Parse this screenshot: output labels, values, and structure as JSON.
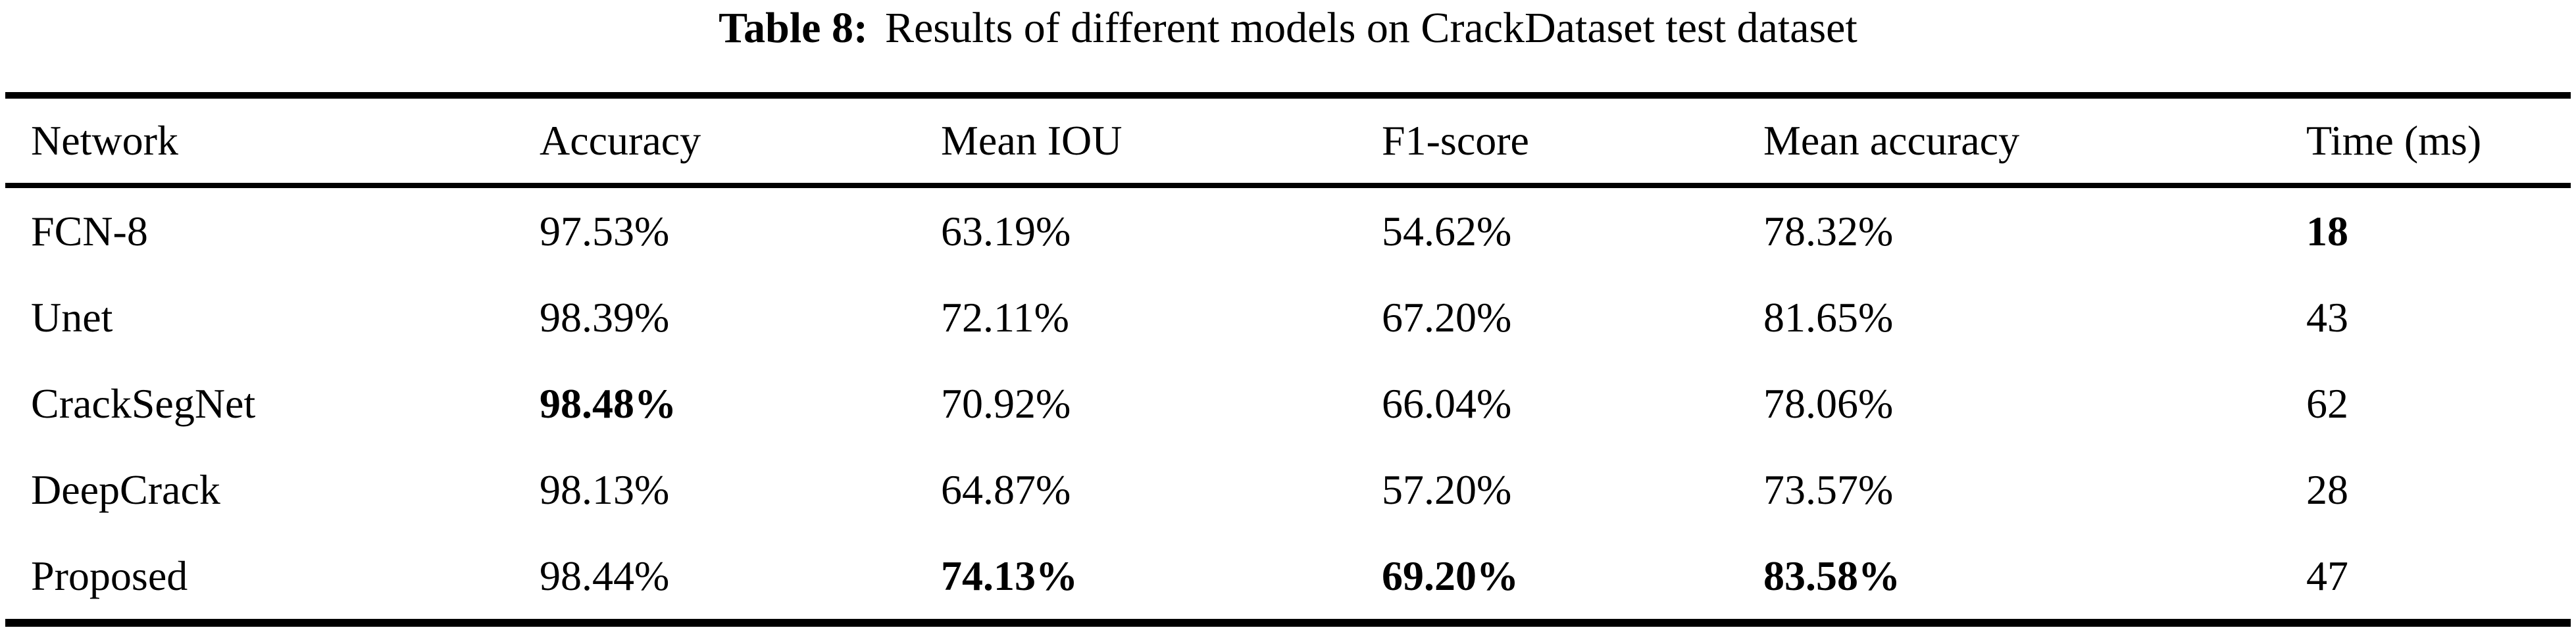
{
  "caption": {
    "label": "Table 8:",
    "text": "Results of different models on CrackDataset test dataset"
  },
  "table": {
    "columns": [
      "Network",
      "Accuracy",
      "Mean IOU",
      "F1-score",
      "Mean accuracy",
      "Time (ms)"
    ],
    "rows": [
      {
        "cells": [
          "FCN-8",
          "97.53%",
          "63.19%",
          "54.62%",
          "78.32%",
          "18"
        ],
        "bold_cell_indices": [
          5
        ]
      },
      {
        "cells": [
          "Unet",
          "98.39%",
          "72.11%",
          "67.20%",
          "81.65%",
          "43"
        ],
        "bold_cell_indices": []
      },
      {
        "cells": [
          "CrackSegNet",
          "98.48%",
          "70.92%",
          "66.04%",
          "78.06%",
          "62"
        ],
        "bold_cell_indices": [
          1
        ]
      },
      {
        "cells": [
          "DeepCrack",
          "98.13%",
          "64.87%",
          "57.20%",
          "73.57%",
          "28"
        ],
        "bold_cell_indices": []
      },
      {
        "cells": [
          "Proposed",
          "98.44%",
          "74.13%",
          "69.20%",
          "83.58%",
          "47"
        ],
        "bold_cell_indices": [
          2,
          3,
          4
        ]
      }
    ]
  },
  "colors": {
    "text": "#000000",
    "background": "#ffffff",
    "rule": "#000000"
  }
}
